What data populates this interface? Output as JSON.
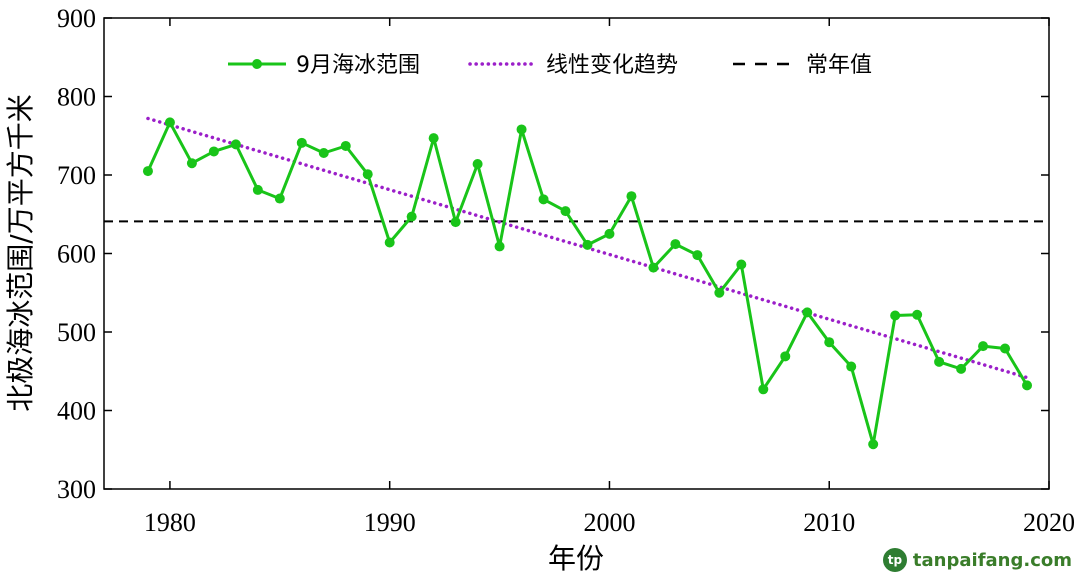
{
  "chart_data": {
    "type": "line",
    "xlabel": "年份",
    "ylabel": "北极海冰范围/万平方千米",
    "xlim": [
      1977,
      2020
    ],
    "ylim": [
      300,
      900
    ],
    "xticks": [
      1980,
      1990,
      2000,
      2010,
      2020
    ],
    "yticks": [
      300,
      400,
      500,
      600,
      700,
      800,
      900
    ],
    "grid": false,
    "legend_position": "top",
    "series": [
      {
        "name": "9月海冰范围",
        "style": "solid-markers",
        "color": "#19c419",
        "x": [
          1979,
          1980,
          1981,
          1982,
          1983,
          1984,
          1985,
          1986,
          1987,
          1988,
          1989,
          1990,
          1991,
          1992,
          1993,
          1994,
          1995,
          1996,
          1997,
          1998,
          1999,
          2000,
          2001,
          2002,
          2003,
          2004,
          2005,
          2006,
          2007,
          2008,
          2009,
          2010,
          2011,
          2012,
          2013,
          2014,
          2015,
          2016,
          2017,
          2018,
          2019
        ],
        "values": [
          705,
          767,
          715,
          730,
          739,
          681,
          670,
          741,
          728,
          737,
          701,
          614,
          647,
          747,
          640,
          714,
          609,
          758,
          669,
          654,
          611,
          625,
          673,
          582,
          612,
          598,
          550,
          586,
          427,
          469,
          525,
          487,
          456,
          357,
          521,
          522,
          462,
          453,
          482,
          479,
          432
        ]
      },
      {
        "name": "线性变化趋势",
        "style": "dotted",
        "color": "#9b1fc9",
        "x": [
          1979,
          2019
        ],
        "values": [
          772,
          442
        ]
      },
      {
        "name": "常年值",
        "style": "dashed",
        "color": "#000000",
        "x": [
          1977,
          2020
        ],
        "values": [
          641,
          641
        ]
      }
    ]
  },
  "watermark": {
    "logo": "tp",
    "text": "tanpaifang.com"
  }
}
